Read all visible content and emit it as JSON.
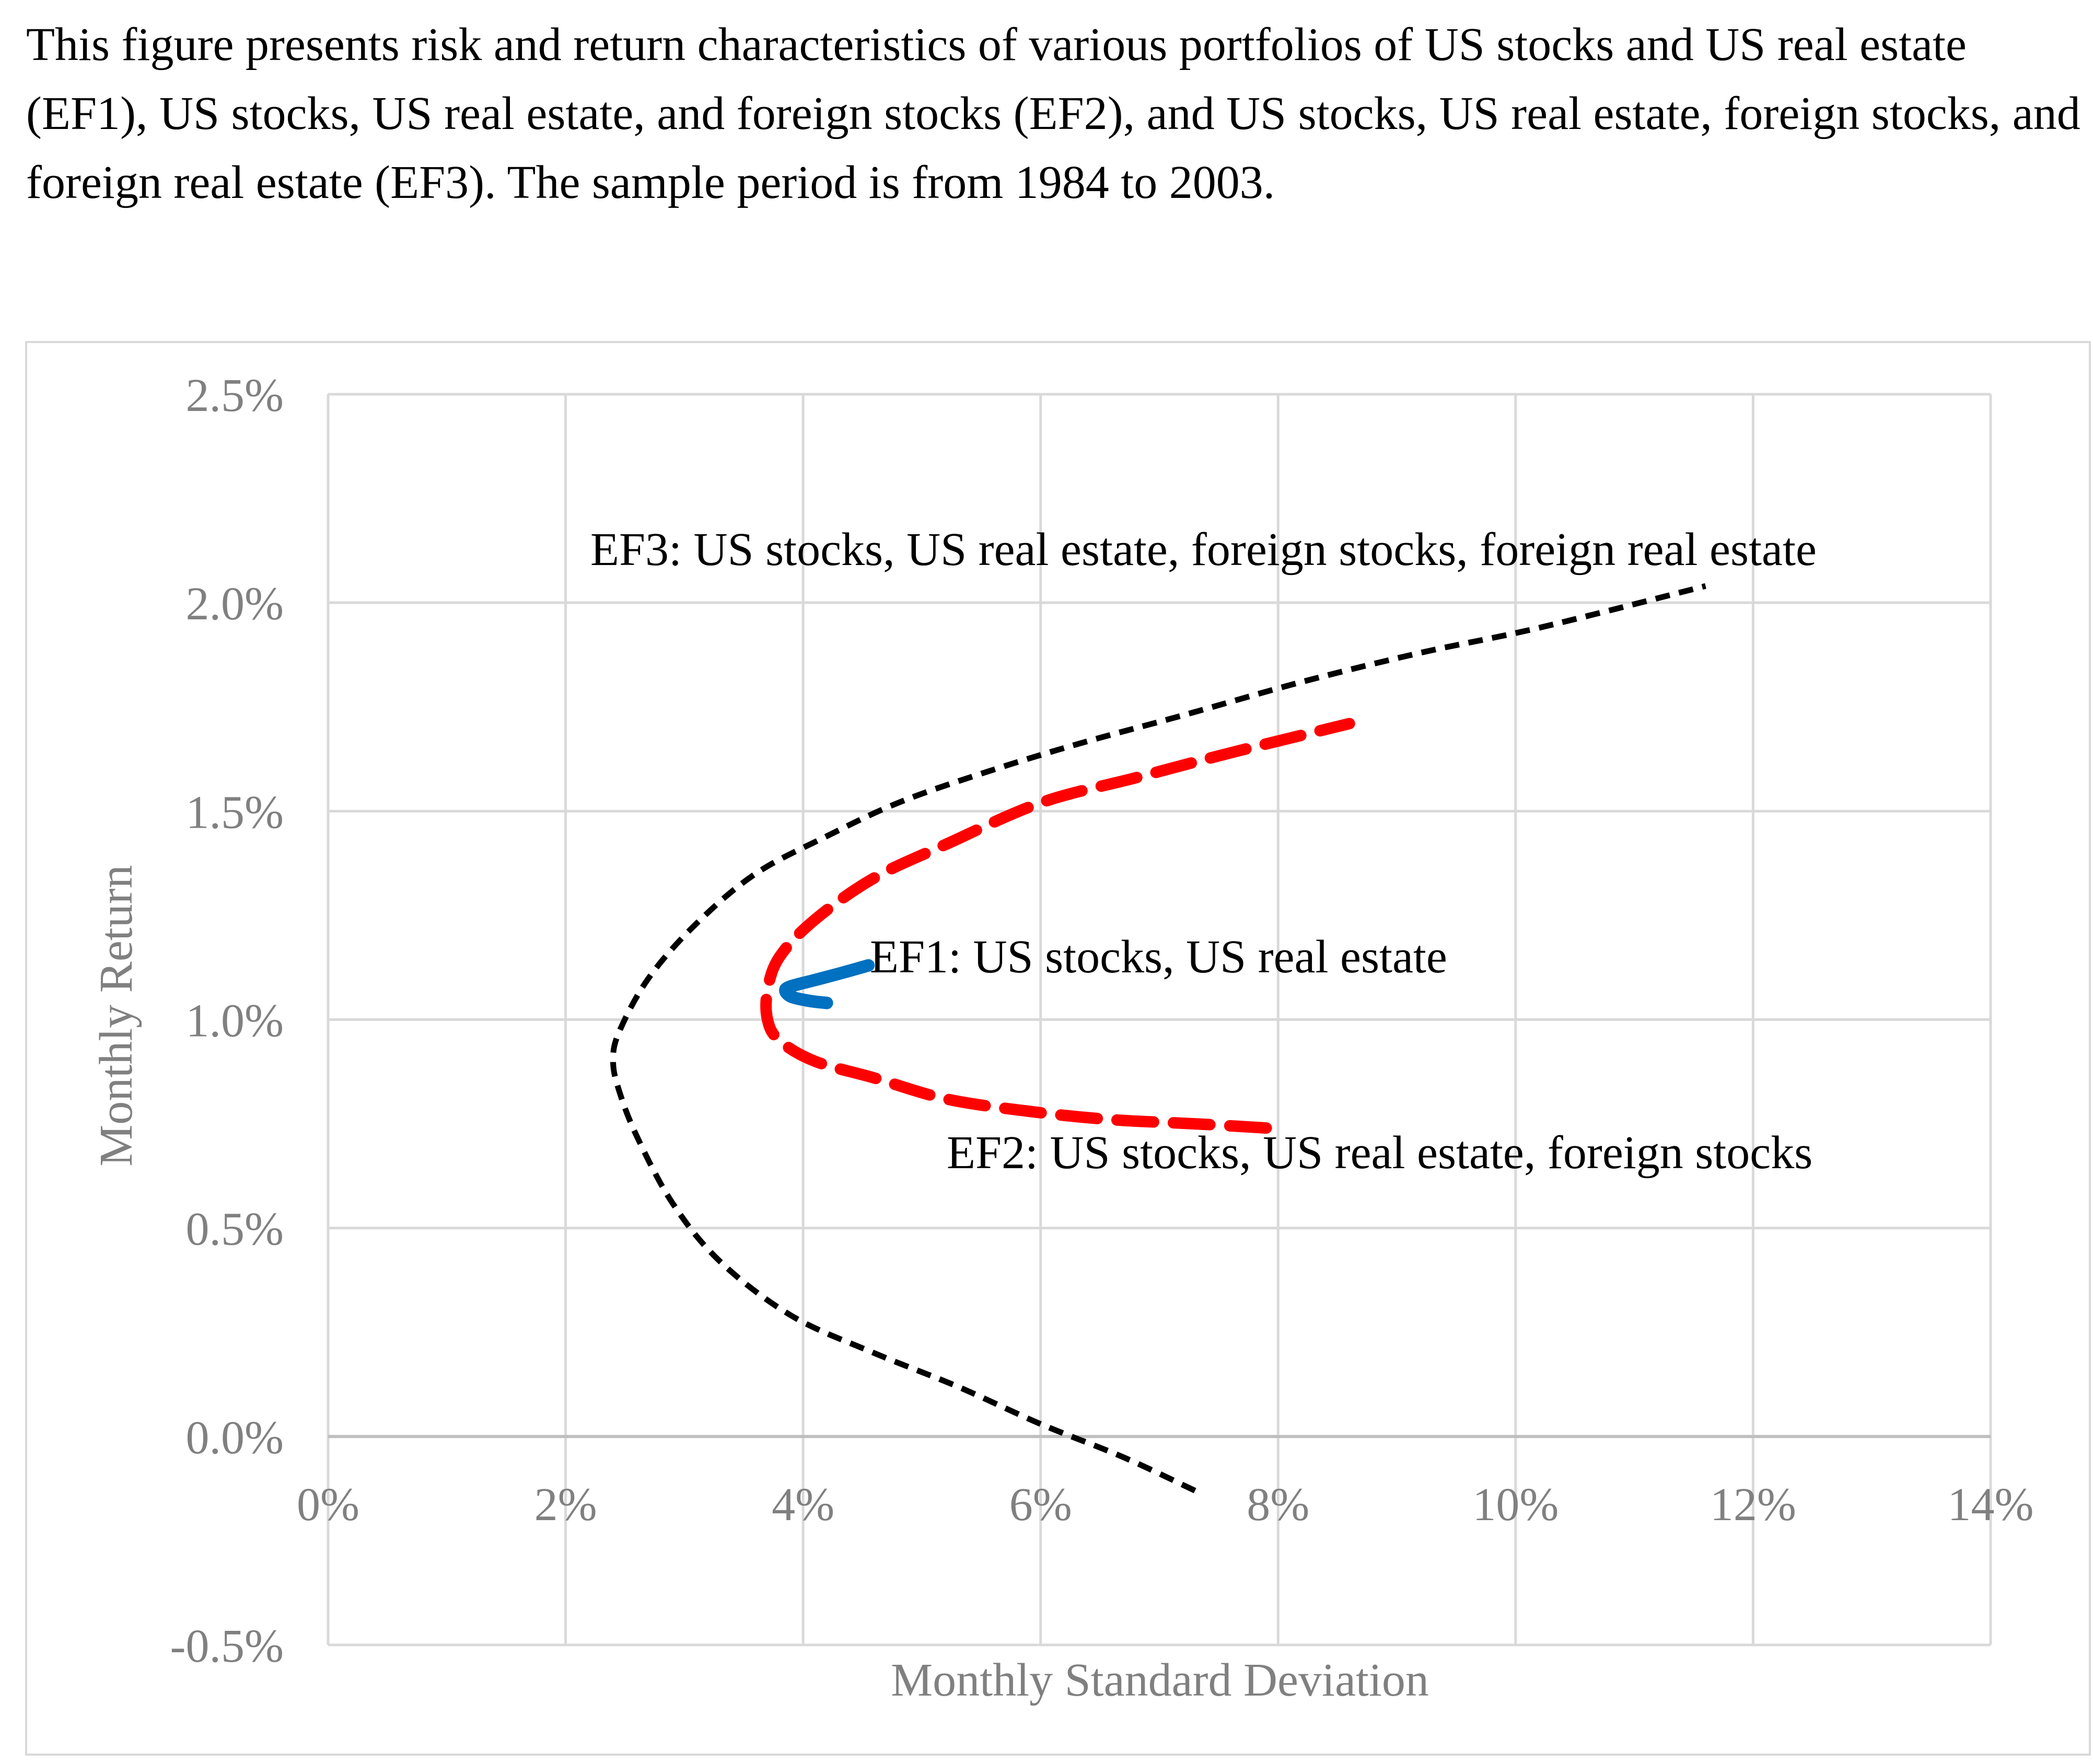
{
  "caption": "This figure presents risk and return characteristics of various portfolios of US stocks and US real estate (EF1), US stocks, US real estate, and foreign stocks (EF2), and US stocks, US real estate, foreign stocks, and foreign real estate (EF3). The sample period is from 1984 to 2003.",
  "colors": {
    "ef1": "#0070c0",
    "ef2": "#ff0000",
    "ef3": "#000000",
    "grid": "#d9d9d9",
    "axis_text": "#808080"
  },
  "chart_data": {
    "type": "line",
    "title": "",
    "xlabel": "Monthly Standard Deviation",
    "ylabel": "Monthly Return",
    "xlim": [
      0,
      14
    ],
    "ylim": [
      -0.5,
      2.5
    ],
    "x_ticks": [
      "0%",
      "2%",
      "4%",
      "6%",
      "8%",
      "10%",
      "12%",
      "14%"
    ],
    "y_ticks": [
      "2.5%",
      "2.0%",
      "1.5%",
      "1.0%",
      "0.5%",
      "0.0%",
      "-0.5%"
    ],
    "grid": true,
    "series": [
      {
        "name": "EF3: US stocks, US real estate, foreign stocks, foreign real estate",
        "label": "EF3: US stocks, US real estate, foreign stocks, foreign real estate",
        "key": "ef3",
        "style": "dotted",
        "points": [
          [
            7.3,
            -0.13
          ],
          [
            6.7,
            -0.05
          ],
          [
            6.0,
            0.03
          ],
          [
            5.3,
            0.12
          ],
          [
            4.6,
            0.2
          ],
          [
            3.9,
            0.29
          ],
          [
            3.3,
            0.42
          ],
          [
            2.9,
            0.56
          ],
          [
            2.6,
            0.72
          ],
          [
            2.45,
            0.83
          ],
          [
            2.4,
            0.9
          ],
          [
            2.45,
            0.97
          ],
          [
            2.7,
            1.1
          ],
          [
            3.1,
            1.23
          ],
          [
            3.6,
            1.35
          ],
          [
            4.2,
            1.44
          ],
          [
            4.8,
            1.52
          ],
          [
            5.5,
            1.59
          ],
          [
            6.3,
            1.66
          ],
          [
            7.2,
            1.73
          ],
          [
            8.2,
            1.81
          ],
          [
            9.2,
            1.88
          ],
          [
            10.2,
            1.94
          ],
          [
            11.6,
            2.04
          ]
        ]
      },
      {
        "name": "EF2: US stocks, US real estate, foreign stocks",
        "label": "EF2: US stocks, US real estate, foreign stocks",
        "key": "ef2",
        "style": "dashed",
        "points": [
          [
            7.9,
            0.74
          ],
          [
            7.3,
            0.75
          ],
          [
            6.6,
            0.76
          ],
          [
            5.9,
            0.78
          ],
          [
            5.2,
            0.81
          ],
          [
            4.6,
            0.86
          ],
          [
            4.1,
            0.9
          ],
          [
            3.8,
            0.95
          ],
          [
            3.7,
            1.0
          ],
          [
            3.7,
            1.07
          ],
          [
            3.8,
            1.15
          ],
          [
            4.1,
            1.24
          ],
          [
            4.6,
            1.34
          ],
          [
            5.2,
            1.42
          ],
          [
            6.0,
            1.52
          ],
          [
            6.8,
            1.58
          ],
          [
            7.6,
            1.64
          ],
          [
            8.6,
            1.71
          ]
        ]
      },
      {
        "name": "EF1: US stocks, US real estate",
        "label": "EF1: US stocks, US real estate",
        "key": "ef1",
        "style": "solid",
        "points": [
          [
            4.2,
            1.04
          ],
          [
            4.05,
            1.045
          ],
          [
            3.9,
            1.055
          ],
          [
            3.85,
            1.07
          ],
          [
            3.9,
            1.08
          ],
          [
            4.1,
            1.095
          ],
          [
            4.3,
            1.11
          ],
          [
            4.55,
            1.13
          ]
        ]
      }
    ]
  }
}
